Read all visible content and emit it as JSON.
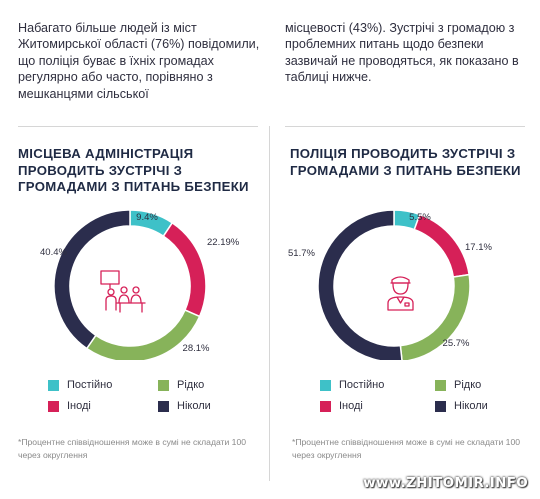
{
  "intro": {
    "left_text": "Набагато більше людей із міст Житомирської області (76%) повідомили, що поліція буває в їхніх громадах регулярно або часто, порівняно з мешканцями сільської",
    "right_text": "місцевості (43%). Зустрічі з громадою з проблемних питань щодо безпеки зазвичай не проводяться, як показано в таблиці нижче."
  },
  "colors": {
    "constant": "#3ec1c8",
    "sometimes": "#d62058",
    "rarely": "#87b35a",
    "never": "#2b2d4d",
    "icon": "#d62058"
  },
  "chart_data": [
    {
      "type": "pie",
      "title": "МІСЦЕВА АДМІНІСТРАЦІЯ ПРОВОДИТЬ ЗУСТРІЧІ З ГРОМАДАМИ З ПИТАНЬ БЕЗПЕКИ",
      "categories": [
        "Постійно",
        "Іноді",
        "Рідко",
        "Ніколи"
      ],
      "values": [
        9.4,
        22.19,
        28.1,
        40.4
      ],
      "labels": [
        "9.4%",
        "22.19%",
        "28.1%",
        "40.4%"
      ],
      "icon": "meeting-icon",
      "footnote": "*Процентне співвідношення може в сумі не складати 100 через округлення"
    },
    {
      "type": "pie",
      "title": "ПОЛІЦІЯ ПРОВОДИТЬ ЗУСТРІЧІ З ГРОМАДАМИ З ПИТАНЬ БЕЗПЕКИ",
      "categories": [
        "Постійно",
        "Іноді",
        "Рідко",
        "Ніколи"
      ],
      "values": [
        5.5,
        17.1,
        25.7,
        51.7
      ],
      "labels": [
        "5.5%",
        "17.1%",
        "25.7%",
        "51.7%"
      ],
      "icon": "police-officer-icon",
      "footnote": "*Процентне співвідношення може в сумі не складати 100 через округлення"
    }
  ],
  "legend": {
    "constant": "Постійно",
    "sometimes": "Іноді",
    "rarely": "Рідко",
    "never": "Ніколи"
  },
  "watermark": "www.ZHITOMIR.INFO"
}
